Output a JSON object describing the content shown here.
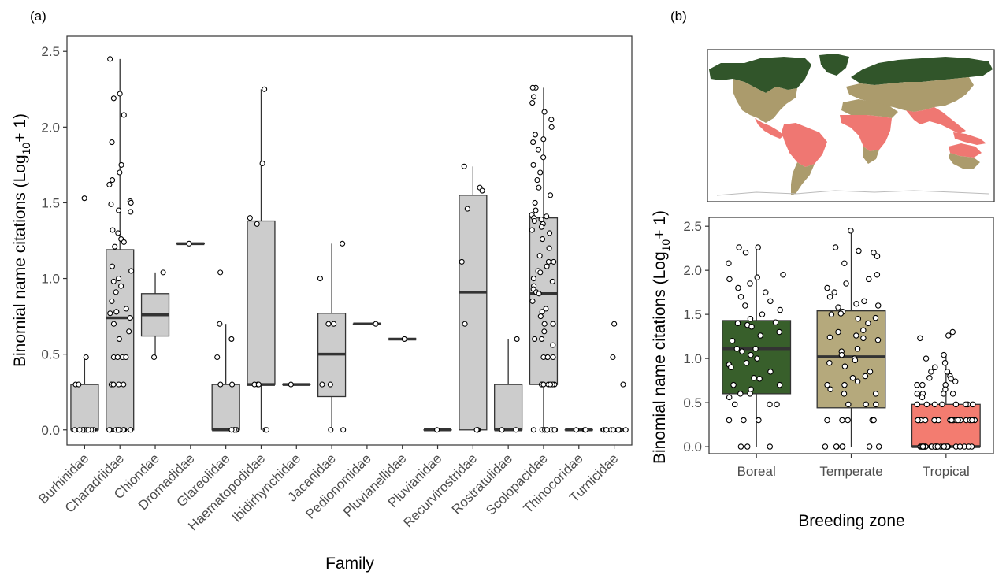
{
  "panel_labels": {
    "a": "(a)",
    "b": "(b)"
  },
  "colors": {
    "box_fill_a": "#cccccc",
    "Boreal": "#385f2b",
    "Temperate": "#b5a97c",
    "Tropical": "#f37c70",
    "map_boreal": "#31552a",
    "map_temperate": "#ab9b6c",
    "map_tropical": "#ef7772"
  },
  "map": {
    "description_icon": "world-map-breeding-zones"
  },
  "chart_data": [
    {
      "type": "box",
      "panel": "(a)",
      "xlabel": "Family",
      "ylabel_main": "Binomial name citations (Log",
      "ylabel_sub": "10",
      "ylabel_end": "+ 1)",
      "ylim": [
        -0.1,
        2.6
      ],
      "yticks": [
        "0.0",
        "0.5",
        "1.0",
        "1.5",
        "2.0",
        "2.5"
      ],
      "yticks_values": [
        0,
        0.5,
        1.0,
        1.5,
        2.0,
        2.5
      ],
      "categories": [
        "Burhinidae",
        "Charadriidae",
        "Chiondae",
        "Dromadidae",
        "Glareolidae",
        "Haematopodidae",
        "Ibidirhynchidae",
        "Jacanidae",
        "Pedionomidae",
        "Pluvianellidae",
        "Pluvianidae",
        "Recurvirostridae",
        "Rostratulidae",
        "Scolopacidae",
        "Thinocoridae",
        "Turnicidae"
      ],
      "boxes": [
        {
          "min": 0,
          "q1": 0,
          "median": 0,
          "q3": 0.3,
          "max": 0.48
        },
        {
          "min": 0,
          "q1": 0,
          "median": 0.74,
          "q3": 1.19,
          "max": 2.45
        },
        {
          "min": 0.48,
          "q1": 0.62,
          "median": 0.76,
          "q3": 0.9,
          "max": 1.04
        },
        {
          "min": 1.23,
          "q1": 1.23,
          "median": 1.23,
          "q3": 1.23,
          "max": 1.23
        },
        {
          "min": 0,
          "q1": 0,
          "median": 0,
          "q3": 0.3,
          "max": 0.7
        },
        {
          "min": 0,
          "q1": 0.3,
          "median": 0.3,
          "q3": 1.38,
          "max": 2.25
        },
        {
          "min": 0.3,
          "q1": 0.3,
          "median": 0.3,
          "q3": 0.3,
          "max": 0.3
        },
        {
          "min": 0,
          "q1": 0.22,
          "median": 0.5,
          "q3": 0.77,
          "max": 1.23
        },
        {
          "min": 0.7,
          "q1": 0.7,
          "median": 0.7,
          "q3": 0.7,
          "max": 0.7
        },
        {
          "min": 0.6,
          "q1": 0.6,
          "median": 0.6,
          "q3": 0.6,
          "max": 0.6
        },
        {
          "min": 0,
          "q1": 0,
          "median": 0,
          "q3": 0,
          "max": 0
        },
        {
          "min": 0,
          "q1": 0,
          "median": 0.91,
          "q3": 1.55,
          "max": 1.74
        },
        {
          "min": 0,
          "q1": 0,
          "median": 0,
          "q3": 0.3,
          "max": 0.6
        },
        {
          "min": 0,
          "q1": 0.3,
          "median": 0.9,
          "q3": 1.4,
          "max": 2.26
        },
        {
          "min": 0,
          "q1": 0,
          "median": 0,
          "q3": 0,
          "max": 0
        },
        {
          "min": 0,
          "q1": 0,
          "median": 0,
          "q3": 0,
          "max": 0
        }
      ],
      "points": [
        [
          1.53,
          0.48,
          0.3,
          0.3,
          0,
          0,
          0,
          0,
          0,
          0,
          0,
          0,
          0
        ],
        [
          2.45,
          2.22,
          2.19,
          2.08,
          1.9,
          1.75,
          1.7,
          1.65,
          1.62,
          1.51,
          1.5,
          1.49,
          1.45,
          1.44,
          1.32,
          1.3,
          1.26,
          1.24,
          1.21,
          1.08,
          1.05,
          1.0,
          0.98,
          0.95,
          0.91,
          0.85,
          0.8,
          0.78,
          0.78,
          0.77,
          0.74,
          0.7,
          0.65,
          0.6,
          0.48,
          0.48,
          0.48,
          0.48,
          0.3,
          0.3,
          0.3,
          0.3,
          0,
          0,
          0,
          0,
          0,
          0,
          0,
          0,
          0,
          0
        ],
        [
          1.04,
          0.48
        ],
        [
          1.23
        ],
        [
          1.04,
          0.7,
          0.6,
          0.48,
          0.3,
          0.3,
          0,
          0,
          0,
          0,
          0
        ],
        [
          2.25,
          1.76,
          1.4,
          1.36,
          0.3,
          0.3,
          0.3,
          0,
          0
        ],
        [
          0.3
        ],
        [
          1.23,
          1.0,
          0.7,
          0.7,
          0.3,
          0.3,
          0,
          0
        ],
        [
          0.7
        ],
        [
          0.6
        ],
        [
          0
        ],
        [
          1.74,
          1.6,
          1.58,
          1.46,
          1.11,
          0.7,
          0,
          0,
          0
        ],
        [
          0.6,
          0,
          0
        ],
        [
          2.26,
          2.26,
          2.2,
          2.16,
          2.1,
          2.05,
          2.0,
          1.95,
          1.92,
          1.9,
          1.85,
          1.8,
          1.75,
          1.7,
          1.65,
          1.6,
          1.55,
          1.5,
          1.45,
          1.42,
          1.41,
          1.4,
          1.39,
          1.38,
          1.36,
          1.34,
          1.32,
          1.3,
          1.26,
          1.2,
          1.15,
          1.11,
          1.11,
          1.08,
          1.05,
          1.04,
          1.0,
          0.98,
          0.95,
          0.93,
          0.91,
          0.9,
          0.85,
          0.8,
          0.78,
          0.75,
          0.7,
          0.7,
          0.65,
          0.6,
          0.6,
          0.56,
          0.48,
          0.48,
          0.48,
          0.48,
          0.3,
          0.3,
          0.3,
          0.3,
          0.3,
          0.3,
          0.3,
          0,
          0,
          0,
          0,
          0,
          0,
          0,
          0,
          0,
          0
        ],
        [
          0,
          0,
          0
        ],
        [
          0.7,
          0.48,
          0.3,
          0,
          0,
          0,
          0,
          0,
          0,
          0,
          0,
          0
        ]
      ]
    },
    {
      "type": "box",
      "panel": "(b)",
      "xlabel": "Breeding zone",
      "ylabel_main": "Binomial name citations (Log",
      "ylabel_sub": "10",
      "ylabel_end": "+ 1)",
      "ylim": [
        -0.08,
        2.6
      ],
      "yticks": [
        "0.0",
        "0.5",
        "1.0",
        "1.5",
        "2.0",
        "2.5"
      ],
      "yticks_values": [
        0,
        0.5,
        1.0,
        1.5,
        2.0,
        2.5
      ],
      "categories": [
        "Boreal",
        "Temperate",
        "Tropical"
      ],
      "boxes": [
        {
          "min": 0,
          "q1": 0.6,
          "median": 1.11,
          "q3": 1.43,
          "max": 2.26
        },
        {
          "min": 0,
          "q1": 0.44,
          "median": 1.02,
          "q3": 1.54,
          "max": 2.45
        },
        {
          "min": 0,
          "q1": 0,
          "median": 0,
          "q3": 0.48,
          "max": 1.04
        }
      ],
      "points": [
        [
          2.26,
          2.26,
          2.2,
          2.08,
          1.95,
          1.92,
          1.9,
          1.85,
          1.8,
          1.75,
          1.7,
          1.65,
          1.6,
          1.55,
          1.5,
          1.45,
          1.41,
          1.4,
          1.38,
          1.36,
          1.3,
          1.26,
          1.2,
          1.11,
          1.11,
          1.08,
          1.04,
          1.0,
          0.95,
          0.93,
          0.9,
          0.85,
          0.78,
          0.77,
          0.7,
          0.7,
          0.65,
          0.6,
          0.6,
          0.56,
          0.48,
          0.48,
          0.48,
          0.3,
          0.3,
          0.3,
          0,
          0,
          0
        ],
        [
          2.45,
          2.26,
          2.22,
          2.2,
          2.16,
          2.08,
          1.95,
          1.9,
          1.85,
          1.8,
          1.75,
          1.7,
          1.65,
          1.62,
          1.6,
          1.58,
          1.53,
          1.51,
          1.5,
          1.46,
          1.45,
          1.4,
          1.32,
          1.3,
          1.26,
          1.24,
          1.23,
          1.21,
          1.11,
          1.08,
          1.04,
          1.0,
          0.98,
          0.95,
          0.91,
          0.85,
          0.8,
          0.78,
          0.78,
          0.74,
          0.7,
          0.7,
          0.65,
          0.6,
          0.6,
          0.48,
          0.48,
          0.48,
          0.3,
          0.3,
          0.3,
          0.3,
          0.3,
          0,
          0,
          0,
          0,
          0,
          0,
          0
        ],
        [
          1.3,
          1.26,
          1.23,
          1.04,
          1.0,
          0.95,
          0.9,
          0.85,
          0.85,
          0.8,
          0.78,
          0.77,
          0.74,
          0.7,
          0.7,
          0.7,
          0.65,
          0.6,
          0.6,
          0.6,
          0.6,
          0.56,
          0.48,
          0.48,
          0.48,
          0.48,
          0.48,
          0.48,
          0.48,
          0.48,
          0.3,
          0.3,
          0.3,
          0.3,
          0.3,
          0.3,
          0.3,
          0.3,
          0.3,
          0.3,
          0.3,
          0.3,
          0.3,
          0.3,
          0.3,
          0.3,
          0.3,
          0.3,
          0,
          0,
          0,
          0,
          0,
          0,
          0,
          0,
          0,
          0,
          0,
          0,
          0,
          0,
          0,
          0,
          0,
          0,
          0,
          0,
          0,
          0,
          0,
          0,
          0,
          0,
          0,
          0
        ]
      ]
    }
  ]
}
